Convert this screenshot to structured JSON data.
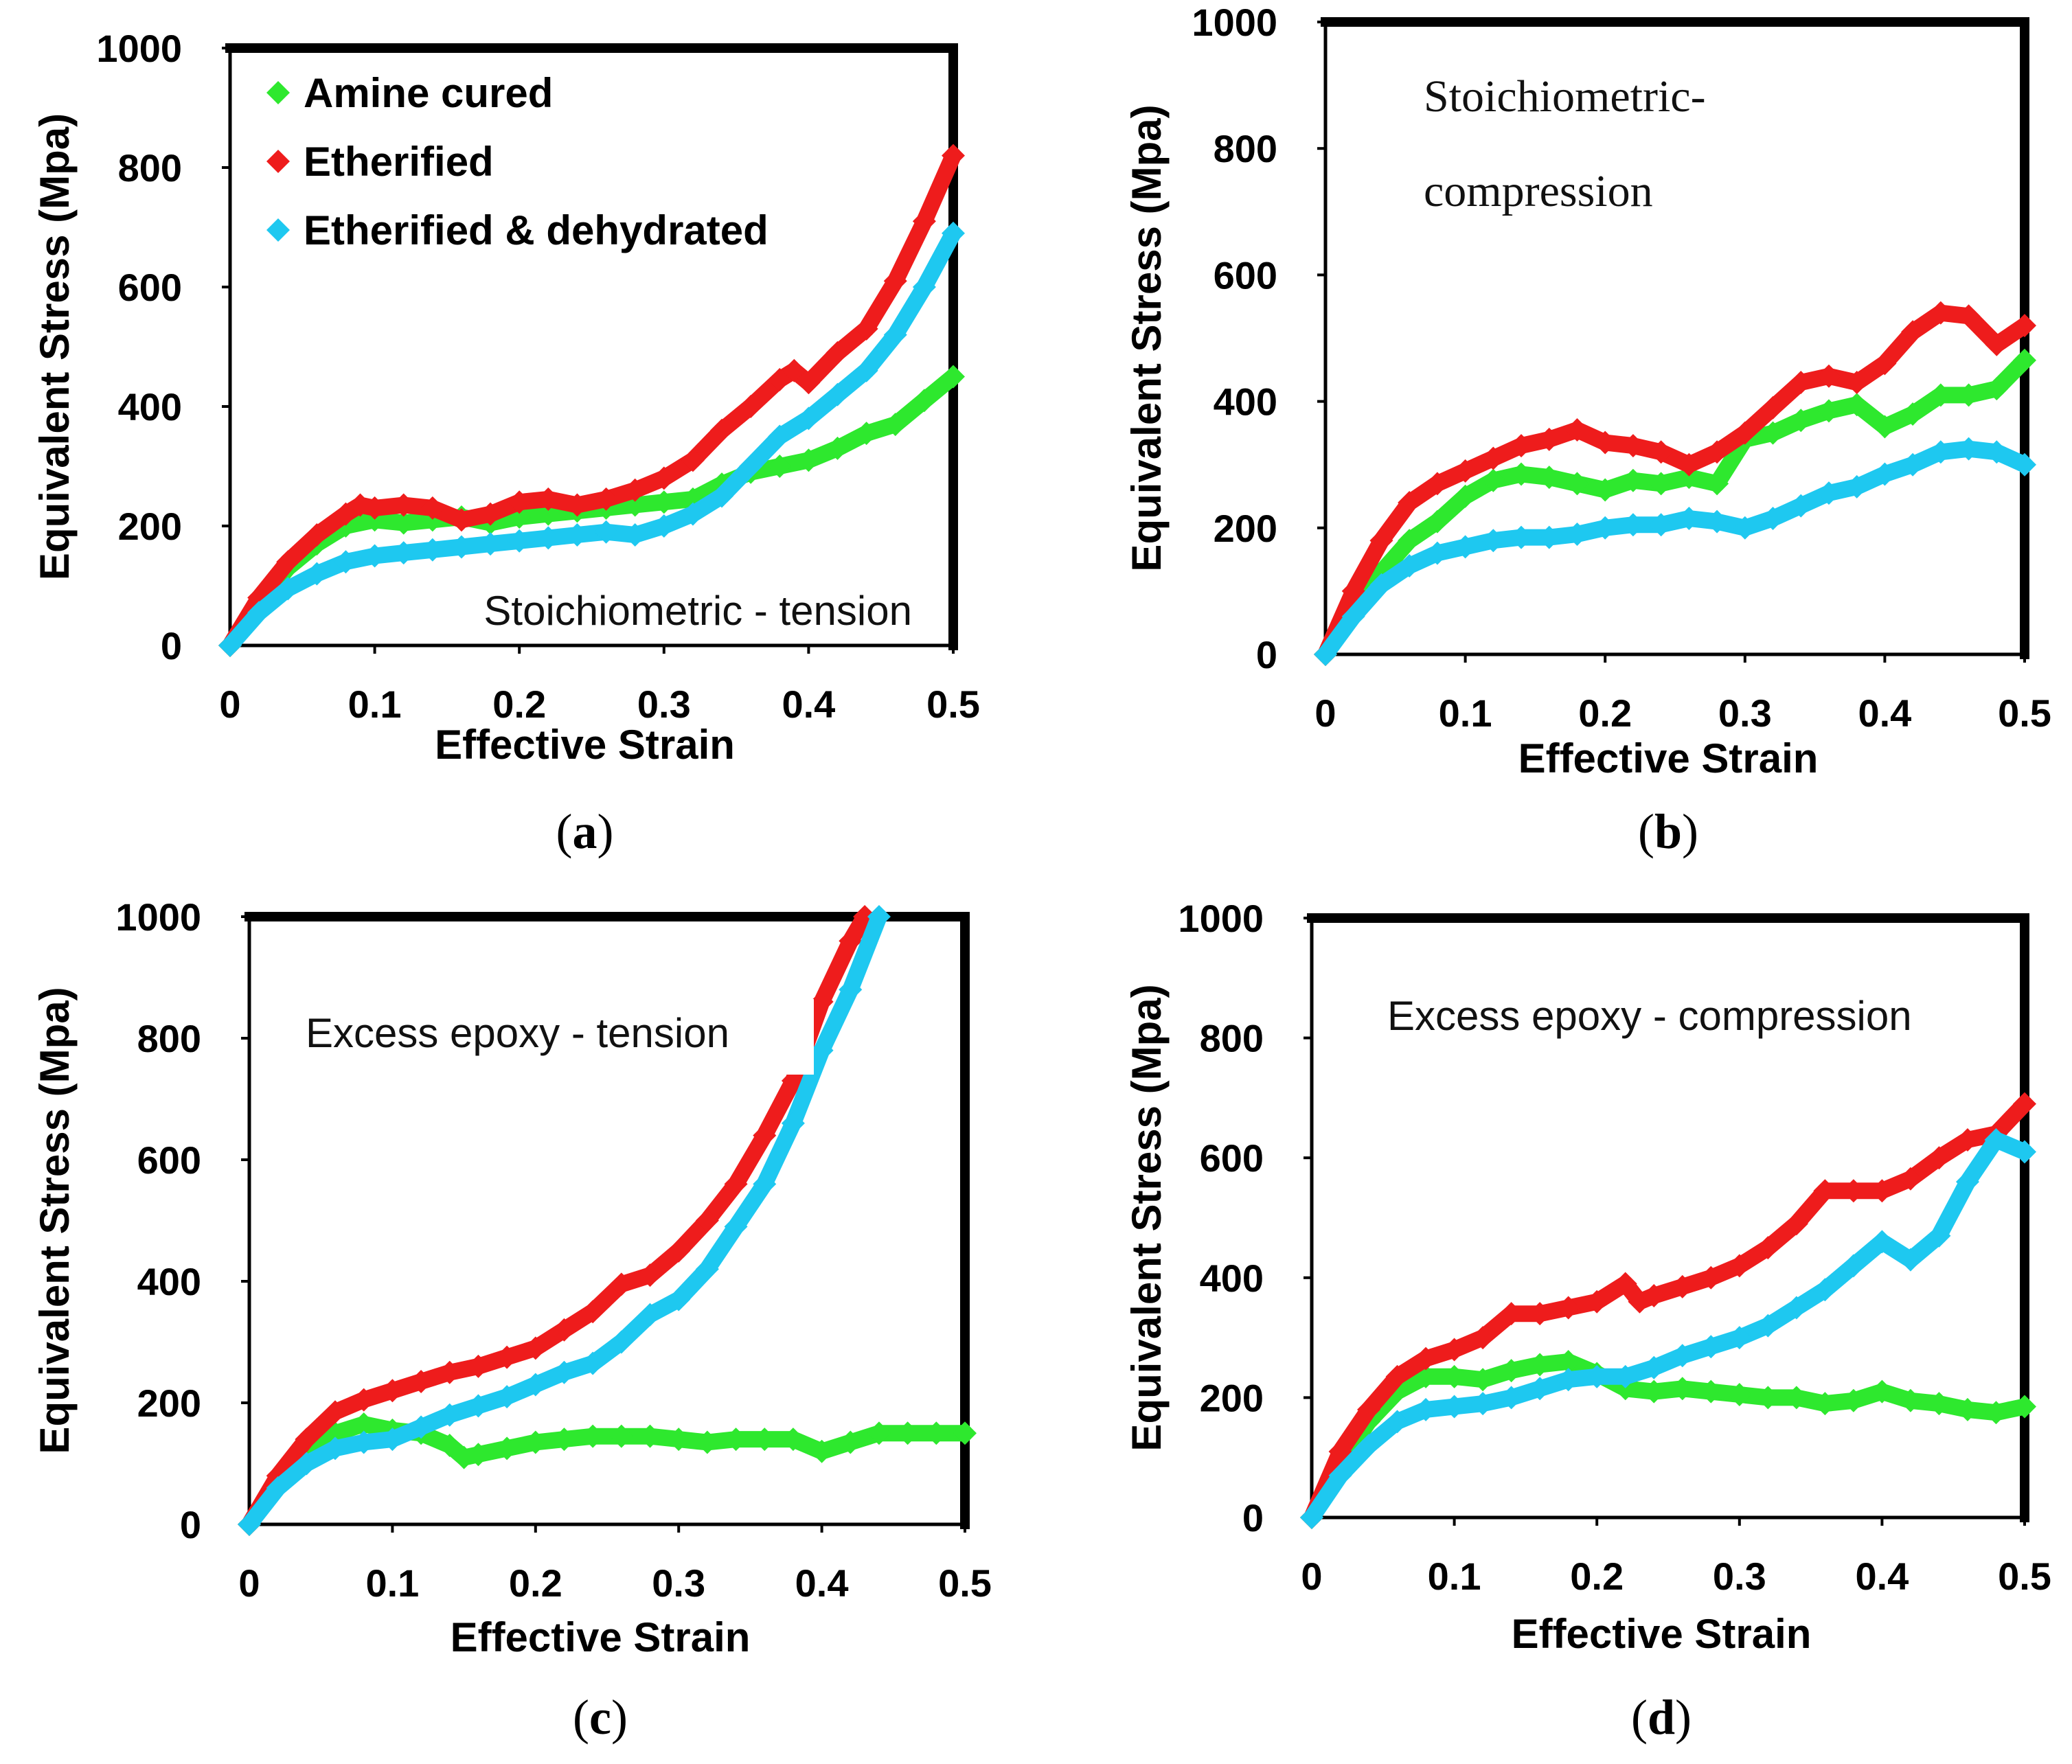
{
  "colors": {
    "amine": "#2ee82e",
    "etherified": "#ee1c1c",
    "dehydrated": "#1ec8f0"
  },
  "legend": [
    {
      "key": "amine",
      "label": "Amine cured"
    },
    {
      "key": "etherified",
      "label": "Etherified"
    },
    {
      "key": "dehydrated",
      "label": "Etherified & dehydrated"
    }
  ],
  "chart_data": [
    {
      "type": "line",
      "panel": "a",
      "panel_label": "a",
      "annotation": "Stoichiometric - tension",
      "xlabel": "Effective Strain",
      "ylabel": "Equivalent Stress (Mpa)",
      "xlim": [
        0,
        0.5
      ],
      "ylim": [
        0,
        1000
      ],
      "xticks": [
        "0",
        "0.1",
        "0.2",
        "0.3",
        "0.4",
        "0.5"
      ],
      "yticks": [
        "0",
        "200",
        "400",
        "600",
        "800",
        "1000"
      ],
      "legend": true,
      "series": [
        {
          "key": "amine",
          "name": "Amine cured",
          "x": [
            0,
            0.02,
            0.04,
            0.06,
            0.08,
            0.1,
            0.12,
            0.14,
            0.16,
            0.18,
            0.2,
            0.22,
            0.24,
            0.26,
            0.28,
            0.3,
            0.32,
            0.34,
            0.36,
            0.38,
            0.4,
            0.42,
            0.44,
            0.46,
            0.48,
            0.5
          ],
          "y": [
            0,
            70,
            130,
            170,
            200,
            210,
            205,
            210,
            215,
            205,
            215,
            220,
            225,
            230,
            235,
            240,
            245,
            270,
            290,
            300,
            310,
            330,
            355,
            370,
            410,
            450
          ]
        },
        {
          "key": "etherified",
          "name": "Etherified",
          "x": [
            0,
            0.02,
            0.04,
            0.06,
            0.08,
            0.09,
            0.1,
            0.12,
            0.14,
            0.16,
            0.18,
            0.2,
            0.22,
            0.24,
            0.26,
            0.28,
            0.3,
            0.32,
            0.34,
            0.36,
            0.38,
            0.39,
            0.4,
            0.42,
            0.44,
            0.46,
            0.48,
            0.5
          ],
          "y": [
            0,
            80,
            140,
            185,
            220,
            235,
            230,
            235,
            230,
            210,
            220,
            240,
            245,
            235,
            245,
            260,
            280,
            310,
            360,
            400,
            445,
            460,
            440,
            490,
            530,
            610,
            710,
            820
          ]
        },
        {
          "key": "dehydrated",
          "name": "Etherified & dehydrated",
          "x": [
            0,
            0.02,
            0.04,
            0.06,
            0.08,
            0.1,
            0.12,
            0.14,
            0.16,
            0.18,
            0.2,
            0.22,
            0.24,
            0.26,
            0.28,
            0.3,
            0.32,
            0.34,
            0.36,
            0.38,
            0.4,
            0.42,
            0.44,
            0.46,
            0.48,
            0.5
          ],
          "y": [
            0,
            55,
            95,
            120,
            140,
            150,
            155,
            160,
            165,
            170,
            175,
            180,
            185,
            190,
            185,
            200,
            220,
            250,
            300,
            350,
            380,
            420,
            460,
            520,
            600,
            690
          ]
        }
      ]
    },
    {
      "type": "line",
      "panel": "b",
      "panel_label": "b",
      "annotation": "Stoichiometric- compression",
      "xlabel": "Effective Strain",
      "ylabel": "Equivalent Stress (Mpa)",
      "xlim": [
        0,
        0.5
      ],
      "ylim": [
        0,
        1000
      ],
      "xticks": [
        "0",
        "0.1",
        "0.2",
        "0.3",
        "0.4",
        "0.5"
      ],
      "yticks": [
        "0",
        "200",
        "400",
        "600",
        "800",
        "1000"
      ],
      "legend": false,
      "series": [
        {
          "key": "amine",
          "name": "Amine cured",
          "x": [
            0,
            0.02,
            0.04,
            0.06,
            0.08,
            0.1,
            0.12,
            0.14,
            0.16,
            0.18,
            0.2,
            0.22,
            0.24,
            0.26,
            0.28,
            0.3,
            0.32,
            0.34,
            0.36,
            0.38,
            0.4,
            0.42,
            0.44,
            0.46,
            0.48,
            0.5
          ],
          "y": [
            0,
            70,
            130,
            180,
            210,
            250,
            275,
            285,
            280,
            270,
            260,
            275,
            270,
            280,
            270,
            340,
            350,
            370,
            385,
            395,
            360,
            380,
            410,
            410,
            420,
            465
          ]
        },
        {
          "key": "etherified",
          "name": "Etherified",
          "x": [
            0,
            0.02,
            0.04,
            0.06,
            0.08,
            0.1,
            0.12,
            0.14,
            0.16,
            0.18,
            0.2,
            0.22,
            0.24,
            0.26,
            0.28,
            0.3,
            0.32,
            0.34,
            0.36,
            0.38,
            0.4,
            0.42,
            0.44,
            0.46,
            0.48,
            0.5
          ],
          "y": [
            0,
            100,
            180,
            240,
            270,
            290,
            310,
            330,
            340,
            355,
            335,
            330,
            320,
            300,
            320,
            350,
            390,
            430,
            440,
            430,
            460,
            510,
            540,
            535,
            490,
            520
          ]
        },
        {
          "key": "dehydrated",
          "name": "Etherified & dehydrated",
          "x": [
            0,
            0.02,
            0.04,
            0.06,
            0.08,
            0.1,
            0.12,
            0.14,
            0.16,
            0.18,
            0.2,
            0.22,
            0.24,
            0.26,
            0.28,
            0.3,
            0.32,
            0.34,
            0.36,
            0.38,
            0.4,
            0.42,
            0.44,
            0.46,
            0.48,
            0.5
          ],
          "y": [
            0,
            60,
            110,
            140,
            160,
            170,
            180,
            185,
            185,
            190,
            200,
            205,
            205,
            215,
            210,
            200,
            215,
            235,
            255,
            265,
            285,
            300,
            320,
            325,
            320,
            300
          ]
        }
      ]
    },
    {
      "type": "line",
      "panel": "c",
      "panel_label": "c",
      "annotation": "Excess epoxy - tension",
      "xlabel": "Effective Strain",
      "ylabel": "Equivalent Stress (Mpa)",
      "xlim": [
        0,
        0.5
      ],
      "ylim": [
        0,
        1000
      ],
      "xticks": [
        "0",
        "0.1",
        "0.2",
        "0.3",
        "0.4",
        "0.5"
      ],
      "yticks": [
        "0",
        "200",
        "400",
        "600",
        "800",
        "1000"
      ],
      "legend": false,
      "series": [
        {
          "key": "amine",
          "name": "Amine cured",
          "x": [
            0,
            0.02,
            0.04,
            0.06,
            0.08,
            0.1,
            0.12,
            0.14,
            0.15,
            0.16,
            0.18,
            0.2,
            0.22,
            0.24,
            0.26,
            0.28,
            0.3,
            0.32,
            0.34,
            0.36,
            0.38,
            0.4,
            0.42,
            0.44,
            0.46,
            0.48,
            0.5
          ],
          "y": [
            0,
            70,
            120,
            150,
            165,
            155,
            150,
            130,
            110,
            115,
            125,
            135,
            140,
            145,
            145,
            145,
            140,
            135,
            140,
            140,
            140,
            120,
            135,
            150,
            150,
            150,
            150
          ]
        },
        {
          "key": "etherified",
          "name": "Etherified",
          "x": [
            0,
            0.02,
            0.04,
            0.06,
            0.08,
            0.1,
            0.12,
            0.14,
            0.16,
            0.18,
            0.2,
            0.22,
            0.24,
            0.26,
            0.28,
            0.3,
            0.32,
            0.34,
            0.36,
            0.38,
            0.4,
            0.42,
            0.43
          ],
          "y": [
            0,
            80,
            140,
            185,
            205,
            220,
            235,
            250,
            260,
            275,
            290,
            320,
            350,
            395,
            410,
            450,
            500,
            560,
            640,
            730,
            860,
            960,
            1000
          ]
        },
        {
          "key": "dehydrated",
          "name": "Etherified & dehydrated",
          "x": [
            0,
            0.02,
            0.04,
            0.06,
            0.08,
            0.1,
            0.12,
            0.14,
            0.16,
            0.18,
            0.2,
            0.22,
            0.24,
            0.26,
            0.28,
            0.3,
            0.32,
            0.34,
            0.36,
            0.38,
            0.4,
            0.42,
            0.44
          ],
          "y": [
            0,
            60,
            100,
            125,
            135,
            140,
            160,
            180,
            195,
            210,
            230,
            250,
            265,
            300,
            345,
            370,
            420,
            490,
            560,
            660,
            780,
            880,
            1000
          ]
        }
      ]
    },
    {
      "type": "line",
      "panel": "d",
      "panel_label": "d",
      "annotation": "Excess epoxy - compression",
      "xlabel": "Effective Strain",
      "ylabel": "Equivalent Stress (Mpa)",
      "xlim": [
        0,
        0.5
      ],
      "ylim": [
        0,
        1000
      ],
      "xticks": [
        "0",
        "0.1",
        "0.2",
        "0.3",
        "0.4",
        "0.5"
      ],
      "yticks": [
        "0",
        "200",
        "400",
        "600",
        "800",
        "1000"
      ],
      "legend": false,
      "series": [
        {
          "key": "amine",
          "name": "Amine cured",
          "x": [
            0,
            0.02,
            0.04,
            0.06,
            0.08,
            0.1,
            0.12,
            0.14,
            0.16,
            0.18,
            0.2,
            0.22,
            0.24,
            0.26,
            0.28,
            0.3,
            0.32,
            0.34,
            0.36,
            0.38,
            0.4,
            0.42,
            0.44,
            0.46,
            0.48,
            0.5
          ],
          "y": [
            0,
            90,
            160,
            210,
            235,
            235,
            230,
            245,
            255,
            260,
            240,
            215,
            210,
            215,
            210,
            205,
            200,
            200,
            190,
            195,
            210,
            195,
            190,
            180,
            175,
            185
          ]
        },
        {
          "key": "etherified",
          "name": "Etherified",
          "x": [
            0,
            0.02,
            0.04,
            0.06,
            0.08,
            0.1,
            0.12,
            0.14,
            0.16,
            0.18,
            0.2,
            0.22,
            0.23,
            0.24,
            0.26,
            0.28,
            0.3,
            0.32,
            0.34,
            0.36,
            0.38,
            0.4,
            0.42,
            0.44,
            0.46,
            0.48,
            0.5
          ],
          "y": [
            0,
            110,
            180,
            235,
            265,
            280,
            300,
            340,
            340,
            350,
            360,
            390,
            360,
            370,
            385,
            400,
            420,
            450,
            490,
            545,
            545,
            545,
            565,
            600,
            630,
            640,
            690
          ]
        },
        {
          "key": "dehydrated",
          "name": "Etherified & dehydrated",
          "x": [
            0,
            0.02,
            0.04,
            0.06,
            0.08,
            0.1,
            0.12,
            0.14,
            0.16,
            0.18,
            0.2,
            0.22,
            0.24,
            0.26,
            0.28,
            0.3,
            0.32,
            0.34,
            0.36,
            0.38,
            0.4,
            0.42,
            0.44,
            0.46,
            0.48,
            0.5
          ],
          "y": [
            0,
            70,
            120,
            160,
            180,
            185,
            190,
            200,
            215,
            230,
            235,
            235,
            250,
            270,
            285,
            300,
            320,
            350,
            380,
            420,
            460,
            430,
            470,
            560,
            630,
            610
          ]
        }
      ]
    }
  ]
}
